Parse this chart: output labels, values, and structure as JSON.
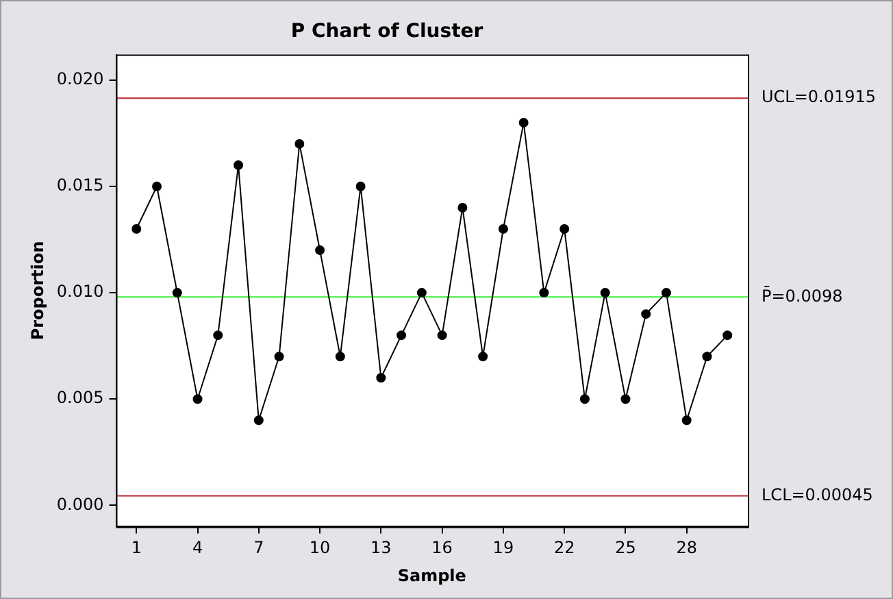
{
  "chart_data": {
    "type": "line",
    "title": "P Chart of Cluster",
    "xlabel": "Sample",
    "ylabel": "Proportion",
    "x": [
      1,
      2,
      3,
      4,
      5,
      6,
      7,
      8,
      9,
      10,
      11,
      12,
      13,
      14,
      15,
      16,
      17,
      18,
      19,
      20,
      21,
      22,
      23,
      24,
      25,
      26,
      27,
      28,
      29,
      30
    ],
    "series": [
      {
        "color": "#000000",
        "values": [
          0.013,
          0.015,
          0.01,
          0.005,
          0.008,
          0.016,
          0.004,
          0.007,
          0.017,
          0.012,
          0.007,
          0.015,
          0.006,
          0.008,
          0.01,
          0.008,
          0.014,
          0.007,
          0.013,
          0.018,
          0.01,
          0.013,
          0.005,
          0.01,
          0.005,
          0.009,
          0.01,
          0.004,
          0.007,
          0.008
        ]
      }
    ],
    "xlim": [
      0,
      31
    ],
    "xticks": [
      1,
      4,
      7,
      10,
      13,
      16,
      19,
      22,
      25,
      28
    ],
    "ylim": [
      -0.001,
      0.0212
    ],
    "yticks": [
      {
        "value": 0,
        "label": "0.000"
      },
      {
        "value": 0.005,
        "label": "0.005"
      },
      {
        "value": 0.01,
        "label": "0.010"
      },
      {
        "value": 0.015,
        "label": "0.015"
      },
      {
        "value": 0.02,
        "label": "0.020"
      }
    ],
    "ref_lines": [
      {
        "axis": "y",
        "value": 0.01915,
        "label": "UCL=0.01915",
        "color": "#c0272d"
      },
      {
        "axis": "y",
        "value": 0.0098,
        "label": "P̄=0.0098",
        "color": "#33ee33"
      },
      {
        "axis": "y",
        "value": 0.00045,
        "label": "LCL=0.00045",
        "color": "#c0272d"
      }
    ],
    "marker": "circle",
    "line_style": "solid",
    "grid": false,
    "legend": false
  }
}
